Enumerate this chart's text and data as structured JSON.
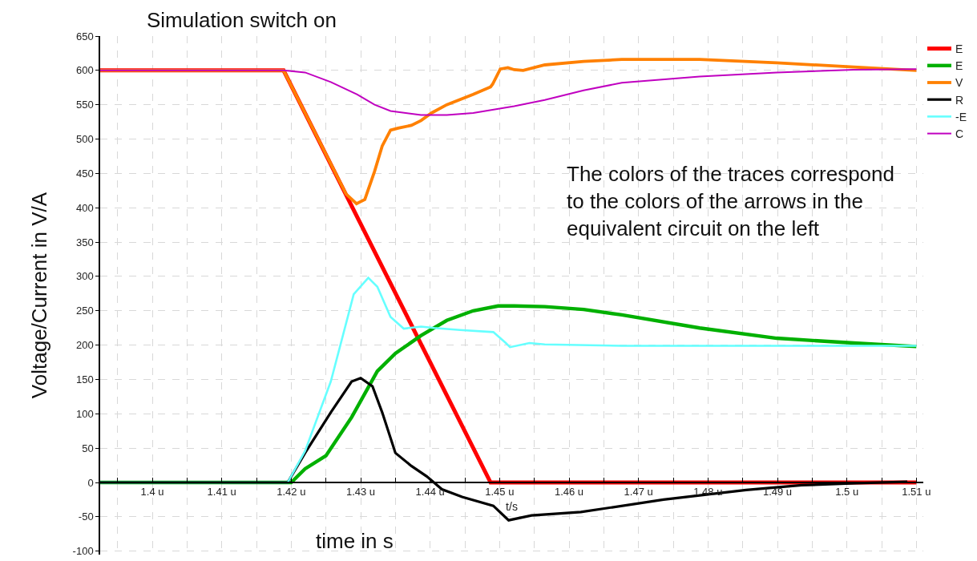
{
  "chart_data": {
    "type": "line",
    "xlabel": "t/s",
    "ylabel": "Voltage/Current in V/A",
    "annotations": [
      "Simulation switch on",
      "time in s",
      "The colors of the traces correspond to the colors of the arrows in the equivalent circuit on the left"
    ],
    "xlim": [
      1.3925,
      1.511
    ],
    "ylim": [
      -105,
      650
    ],
    "xticks": [
      {
        "value": 1.395,
        "label": null
      },
      {
        "value": 1.4,
        "label": "1.4 u"
      },
      {
        "value": 1.405,
        "label": null
      },
      {
        "value": 1.41,
        "label": "1.41 u"
      },
      {
        "value": 1.415,
        "label": null
      },
      {
        "value": 1.42,
        "label": "1.42 u"
      },
      {
        "value": 1.425,
        "label": null
      },
      {
        "value": 1.43,
        "label": "1.43 u"
      },
      {
        "value": 1.435,
        "label": null
      },
      {
        "value": 1.44,
        "label": "1.44 u"
      },
      {
        "value": 1.445,
        "label": null
      },
      {
        "value": 1.45,
        "label": "1.45 u"
      },
      {
        "value": 1.455,
        "label": null
      },
      {
        "value": 1.46,
        "label": "1.46 u"
      },
      {
        "value": 1.465,
        "label": null
      },
      {
        "value": 1.47,
        "label": "1.47 u"
      },
      {
        "value": 1.475,
        "label": null
      },
      {
        "value": 1.48,
        "label": "1.48 u"
      },
      {
        "value": 1.485,
        "label": null
      },
      {
        "value": 1.49,
        "label": "1.49 u"
      },
      {
        "value": 1.495,
        "label": null
      },
      {
        "value": 1.5,
        "label": "1.5 u"
      },
      {
        "value": 1.505,
        "label": null
      },
      {
        "value": 1.51,
        "label": "1.51 u"
      }
    ],
    "yticks": [
      -100,
      -50,
      0,
      50,
      100,
      150,
      200,
      250,
      300,
      350,
      400,
      450,
      500,
      550,
      600,
      650
    ],
    "grid": true,
    "legend": "top right",
    "marker": "none",
    "line_style": "solid",
    "series": [
      {
        "name": "E",
        "color": "#ff0000",
        "x": [
          1.3925,
          1.4189,
          1.4487,
          1.51
        ],
        "values": [
          600,
          600,
          0,
          0
        ]
      },
      {
        "name": "E",
        "color": "#00b000",
        "x": [
          1.3925,
          1.42,
          1.422,
          1.425,
          1.4287,
          1.4324,
          1.435,
          1.4387,
          1.4424,
          1.4462,
          1.4498,
          1.4521,
          1.4565,
          1.4621,
          1.4676,
          1.4788,
          1.4899,
          1.501,
          1.51
        ],
        "values": [
          0,
          0,
          20,
          39,
          95,
          162,
          188,
          214,
          236,
          250,
          257,
          257,
          256,
          252,
          244,
          225,
          210,
          203,
          198
        ]
      },
      {
        "name": "V",
        "color": "#ff8000",
        "x": [
          1.3925,
          1.4189,
          1.4279,
          1.4294,
          1.4306,
          1.432,
          1.4331,
          1.4343,
          1.4354,
          1.4373,
          1.4387,
          1.4402,
          1.4424,
          1.4462,
          1.4487,
          1.449,
          1.4501,
          1.4512,
          1.4521,
          1.4534,
          1.4565,
          1.4621,
          1.4676,
          1.4788,
          1.4899,
          1.501,
          1.51
        ],
        "values": [
          600,
          600,
          420,
          406,
          412,
          453,
          490,
          513,
          516,
          520,
          527,
          538,
          550,
          565,
          576,
          580,
          602,
          604,
          601,
          600,
          608,
          613,
          616,
          616,
          611,
          605,
          600
        ]
      },
      {
        "name": "R",
        "color": "#000000",
        "x": [
          1.3925,
          1.4195,
          1.422,
          1.4257,
          1.4287,
          1.43,
          1.4317,
          1.4331,
          1.435,
          1.4373,
          1.4395,
          1.4417,
          1.4446,
          1.4491,
          1.4513,
          1.4546,
          1.4617,
          1.4736,
          1.4855,
          1.4935,
          1.5014,
          1.5087
        ],
        "values": [
          0,
          0,
          43,
          102,
          147,
          152,
          140,
          102,
          43,
          24,
          9,
          -10,
          -21,
          -34,
          -55,
          -48,
          -43,
          -25,
          -11,
          -4,
          -1,
          1
        ]
      },
      {
        "name": "-E",
        "color": "#66ffff",
        "x": [
          1.3925,
          1.4195,
          1.422,
          1.4257,
          1.429,
          1.4311,
          1.4324,
          1.4343,
          1.4362,
          1.4387,
          1.4406,
          1.4443,
          1.4491,
          1.4509,
          1.4515,
          1.4543,
          1.4565,
          1.4676,
          1.51
        ],
        "values": [
          0,
          0,
          46,
          147,
          274,
          298,
          285,
          241,
          224,
          227,
          225,
          222,
          219,
          203,
          197,
          203,
          201,
          199,
          199
        ]
      },
      {
        "name": "C",
        "color": "#c000c0",
        "x": [
          1.3925,
          1.4189,
          1.422,
          1.4257,
          1.4295,
          1.432,
          1.4343,
          1.4387,
          1.4424,
          1.4462,
          1.4521,
          1.4565,
          1.4621,
          1.4676,
          1.4788,
          1.4899,
          1.501,
          1.51
        ],
        "values": [
          600,
          600,
          597,
          583,
          565,
          550,
          541,
          535,
          535,
          538,
          548,
          557,
          571,
          582,
          591,
          597,
          601,
          602
        ]
      }
    ]
  }
}
